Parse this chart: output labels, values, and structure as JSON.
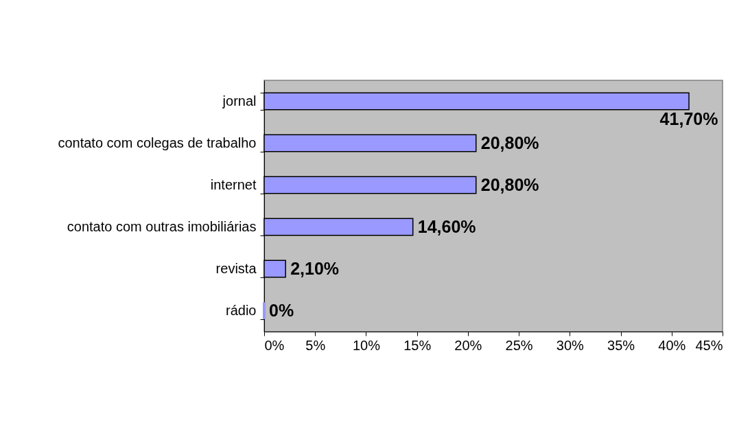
{
  "chart_data": {
    "type": "bar",
    "orientation": "horizontal",
    "categories": [
      "jornal",
      "contato com colegas de trabalho",
      "internet",
      "contato com outras imobiliárias",
      "revista",
      "rádio"
    ],
    "values": [
      41.7,
      20.8,
      20.8,
      14.6,
      2.1,
      0
    ],
    "value_labels": [
      "41,70%",
      "20,80%",
      "20,80%",
      "14,60%",
      "2,10%",
      "0%"
    ],
    "color": "#9999ff",
    "xlim": [
      0,
      45
    ],
    "xticks": [
      {
        "value": 0,
        "label": "0%"
      },
      {
        "value": 5,
        "label": "5%"
      },
      {
        "value": 10,
        "label": "10%"
      },
      {
        "value": 15,
        "label": "15%"
      },
      {
        "value": 20,
        "label": "20%"
      },
      {
        "value": 25,
        "label": "25%"
      },
      {
        "value": 30,
        "label": "30%"
      },
      {
        "value": 35,
        "label": "35%"
      },
      {
        "value": 40,
        "label": "40%"
      },
      {
        "value": 45,
        "label": "45%"
      }
    ]
  }
}
